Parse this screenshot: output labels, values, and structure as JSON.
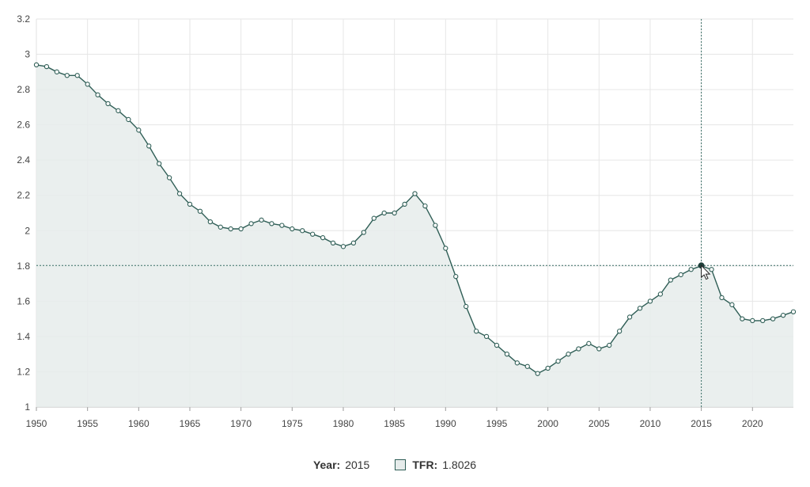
{
  "chart_data": {
    "type": "area",
    "title": "",
    "xlabel": "",
    "ylabel": "",
    "xlim": [
      1950,
      2024
    ],
    "ylim": [
      1,
      3.2
    ],
    "x_ticks": [
      "1950",
      "1955",
      "1960",
      "1965",
      "1970",
      "1975",
      "1980",
      "1985",
      "1990",
      "1995",
      "2000",
      "2005",
      "2010",
      "2015",
      "2020"
    ],
    "y_ticks": [
      "1",
      "1.2",
      "1.4",
      "1.6",
      "1.8",
      "2",
      "2.2",
      "2.4",
      "2.6",
      "2.8",
      "3",
      "3.2"
    ],
    "grid": true,
    "series": [
      {
        "name": "TFR",
        "x": [
          1950,
          1951,
          1952,
          1953,
          1954,
          1955,
          1956,
          1957,
          1958,
          1959,
          1960,
          1961,
          1962,
          1963,
          1964,
          1965,
          1966,
          1967,
          1968,
          1969,
          1970,
          1971,
          1972,
          1973,
          1974,
          1975,
          1976,
          1977,
          1978,
          1979,
          1980,
          1981,
          1982,
          1983,
          1984,
          1985,
          1986,
          1987,
          1988,
          1989,
          1990,
          1991,
          1992,
          1993,
          1994,
          1995,
          1996,
          1997,
          1998,
          1999,
          2000,
          2001,
          2002,
          2003,
          2004,
          2005,
          2006,
          2007,
          2008,
          2009,
          2010,
          2011,
          2012,
          2013,
          2014,
          2015,
          2016,
          2017,
          2018,
          2019,
          2020,
          2021,
          2022,
          2023,
          2024
        ],
        "y": [
          2.94,
          2.93,
          2.9,
          2.88,
          2.88,
          2.83,
          2.77,
          2.72,
          2.68,
          2.63,
          2.57,
          2.48,
          2.38,
          2.3,
          2.21,
          2.15,
          2.11,
          2.05,
          2.02,
          2.01,
          2.01,
          2.04,
          2.06,
          2.04,
          2.03,
          2.01,
          2.0,
          1.98,
          1.96,
          1.93,
          1.91,
          1.93,
          1.99,
          2.07,
          2.1,
          2.1,
          2.15,
          2.21,
          2.14,
          2.03,
          1.9,
          1.74,
          1.57,
          1.43,
          1.4,
          1.35,
          1.3,
          1.25,
          1.23,
          1.19,
          1.22,
          1.26,
          1.3,
          1.33,
          1.36,
          1.33,
          1.35,
          1.43,
          1.51,
          1.56,
          1.6,
          1.64,
          1.72,
          1.75,
          1.78,
          1.8,
          1.78,
          1.62,
          1.58,
          1.5,
          1.49,
          1.49,
          1.5,
          1.52,
          1.54
        ]
      }
    ],
    "colors": {
      "line": "#2f5e56",
      "fill": "#e6eceb",
      "grid": "#e6e6e6",
      "crosshair": "#3a6e66"
    },
    "hover": {
      "x": 2015,
      "y": 1.8026
    }
  },
  "legend": {
    "year_label": "Year:",
    "year_value": "2015",
    "series_label": "TFR:",
    "series_value": "1.8026"
  }
}
